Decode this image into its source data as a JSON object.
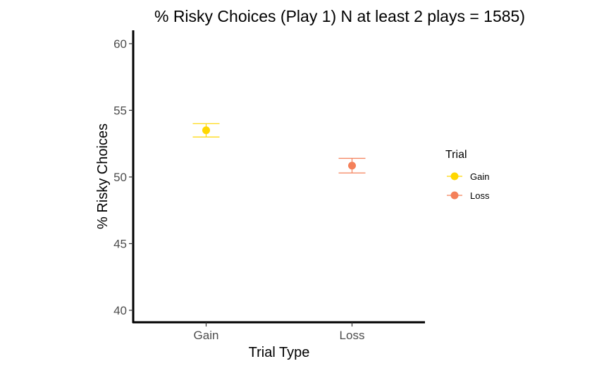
{
  "chart_data": {
    "type": "scatter",
    "title": "% Risky Choices (Play 1) N at least 2 plays = 1585)",
    "xlabel": "Trial Type",
    "ylabel": "% Risky Choices",
    "categories": [
      "Gain",
      "Loss"
    ],
    "ylim": [
      39.1,
      61.0
    ],
    "yticks": [
      40,
      45,
      50,
      55,
      60
    ],
    "grid": false,
    "legend": {
      "title": "Trial",
      "placement": "right"
    },
    "series": [
      {
        "name": "Gain",
        "color": "#FFD700",
        "x": "Gain",
        "value": 53.5,
        "lower": 53.0,
        "upper": 54.0
      },
      {
        "name": "Loss",
        "color": "#F4805A",
        "x": "Loss",
        "value": 50.85,
        "lower": 50.3,
        "upper": 51.4
      }
    ]
  }
}
